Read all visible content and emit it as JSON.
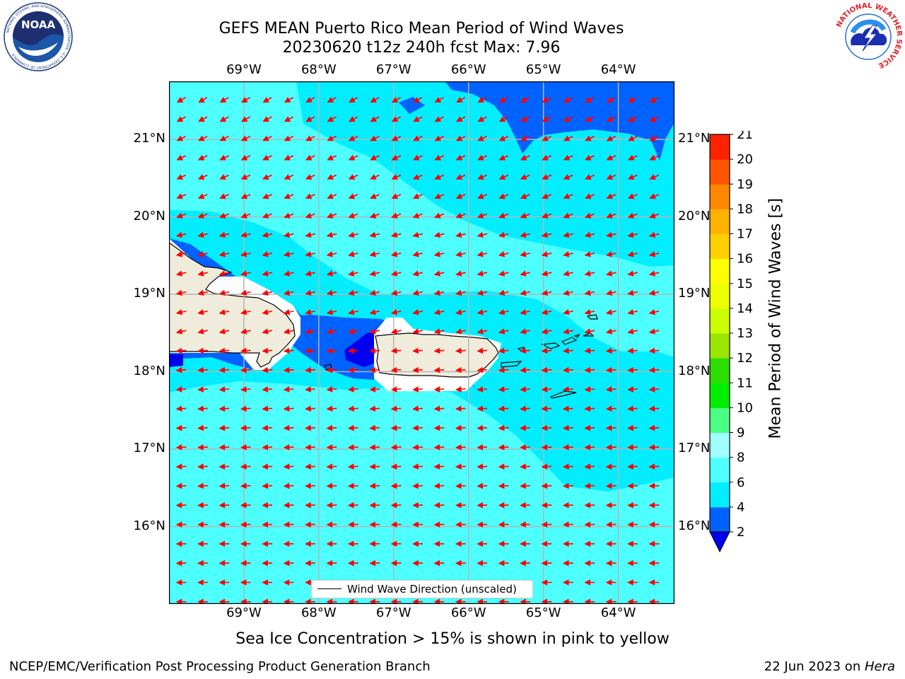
{
  "header": {
    "title_line1": "GEFS MEAN Puerto Rico Mean Period of Wind Waves",
    "title_line2": "20230620 t12z 240h fcst   Max: 7.96"
  },
  "logos": {
    "left": "noaa-logo",
    "left_text": "NOAA",
    "left_ring_text": "NATIONAL OCEANIC AND ATMOSPHERIC ADMINISTRATION · U.S. DEPARTMENT OF COMMERCE",
    "right": "nws-logo",
    "right_ring_text": "NATIONAL WEATHER SERVICE"
  },
  "map": {
    "lon_ticks": [
      "69°W",
      "68°W",
      "67°W",
      "66°W",
      "65°W",
      "64°W"
    ],
    "lat_ticks": [
      "21°N",
      "20°N",
      "19°N",
      "18°N",
      "17°N",
      "16°N"
    ],
    "lon_range": [
      -70.0,
      -63.25
    ],
    "lat_range": [
      15.0,
      21.75
    ],
    "grid": true,
    "land_color": "#efecdc",
    "arrow_color": "#ff0000"
  },
  "legend": {
    "label": "Wind Wave Direction (unscaled)"
  },
  "colorbar": {
    "label": "Mean Period of Wind Waves [s]",
    "ticks": [
      "2",
      "4",
      "6",
      "8",
      "9",
      "10",
      "11",
      "12",
      "13",
      "14",
      "15",
      "16",
      "17",
      "18",
      "19",
      "20",
      "21"
    ],
    "colors": [
      "#0062ff",
      "#00eeff",
      "#4dffff",
      "#a0ffff",
      "#4aff83",
      "#00ee00",
      "#2bdd00",
      "#9ae600",
      "#ccff00",
      "#eeff00",
      "#ffff00",
      "#ffd000",
      "#ffb200",
      "#ff8800",
      "#ff5500",
      "#ff2200"
    ],
    "under_color": "#0000ee"
  },
  "notes": {
    "sea_ice": "Sea Ice Concentration > 15% is shown in pink to yellow",
    "producer": "NCEP/EMC/Verification Post Processing Product Generation Branch",
    "date_prefix": "22 Jun 2023 on ",
    "machine": "Hera"
  }
}
